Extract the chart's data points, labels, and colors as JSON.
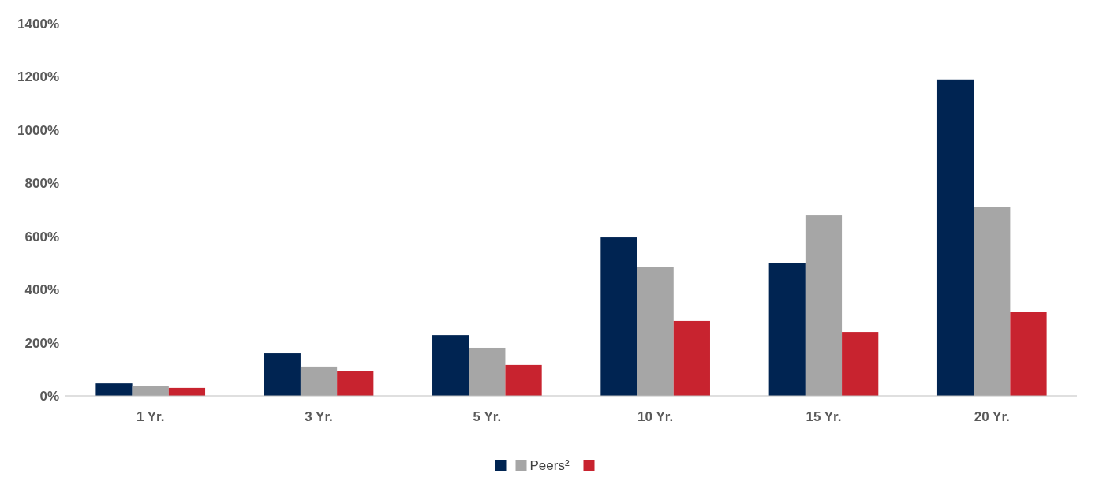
{
  "chart_data": {
    "type": "bar",
    "categories": [
      "1 Yr.",
      "3 Yr.",
      "5 Yr.",
      "10 Yr.",
      "15 Yr.",
      "20 Yr."
    ],
    "series": [
      {
        "color": "#002452",
        "values": [
          47,
          160,
          228,
          596,
          501,
          1190
        ]
      },
      {
        "name": "Peers²",
        "color": "#a6a6a6",
        "values": [
          36,
          110,
          181,
          484,
          679,
          709
        ]
      },
      {
        "color": "#c8232f",
        "values": [
          30,
          92,
          116,
          282,
          240,
          317
        ]
      }
    ],
    "ylim": [
      0,
      1400
    ],
    "yticks": [
      {
        "value": 0,
        "label": "0%"
      },
      {
        "value": 200,
        "label": "200%"
      },
      {
        "value": 400,
        "label": "400%"
      },
      {
        "value": 600,
        "label": "600%"
      },
      {
        "value": 800,
        "label": "800%"
      },
      {
        "value": 1000,
        "label": "1000%"
      },
      {
        "value": 1200,
        "label": "1200%"
      },
      {
        "value": 1400,
        "label": "1400%"
      }
    ],
    "grid": false,
    "legend": "bottom"
  }
}
